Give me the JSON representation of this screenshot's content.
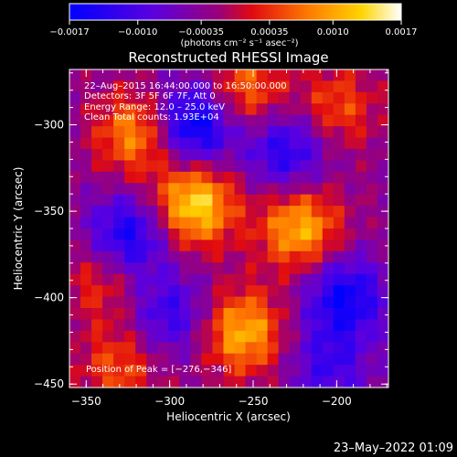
{
  "chart_data": {
    "type": "heatmap",
    "title": "Reconstructed RHESSI Image",
    "xlabel": "Heliocentric X (arcsec)",
    "ylabel": "Heliocentric Y (arcsec)",
    "xlim": [
      -360,
      -169
    ],
    "ylim": [
      -452,
      -268
    ],
    "x_ticks": [
      -350,
      -300,
      -250,
      -200
    ],
    "y_ticks": [
      -300,
      -350,
      -400,
      -450
    ],
    "x_tick_labels": [
      "−350",
      "−300",
      "−250",
      "−200"
    ],
    "y_tick_labels": [
      "−300",
      "−350",
      "−400",
      "−450"
    ],
    "colorbar": {
      "range": [
        -0.0017,
        0.0017
      ],
      "ticks": [
        -0.0017,
        -0.001,
        -0.00035,
        0.00035,
        0.001,
        0.0017
      ],
      "tick_labels": [
        "−0.0017",
        "−0.0010",
        "−0.00035",
        "0.00035",
        "0.0010",
        "0.0017"
      ],
      "unit_label": "(photons cm⁻² s⁻¹ asec⁻²)",
      "colors": [
        "#0000ff",
        "#7a00d0",
        "#ff1500",
        "#ff8a00",
        "#ffd200",
        "#ffffff"
      ]
    },
    "annotations": [
      "22–Aug–2015 16:44:00.000 to 16:50:00.000",
      "Detectors: 3F 5F 6F 7F, Att 0",
      "Energy Range: 12.0 – 25.0 keV",
      "Clean    Total counts: 1.93E+04"
    ],
    "peak_label": "Position of Peak = [−276,−346]",
    "peak_position": [
      -276,
      -346
    ],
    "sources": [
      {
        "x": -285,
        "y": -346,
        "value": 0.0017
      },
      {
        "x": -222,
        "y": -360,
        "value": 0.0014
      },
      {
        "x": -256,
        "y": -420,
        "value": 0.0014
      },
      {
        "x": -320,
        "y": -305,
        "value": 0.0012
      },
      {
        "x": -255,
        "y": -280,
        "value": 0.001
      },
      {
        "x": -200,
        "y": -290,
        "value": 0.0008
      },
      {
        "x": -330,
        "y": -440,
        "value": 0.0008
      },
      {
        "x": -340,
        "y": -390,
        "value": 0.0007
      }
    ],
    "negative_regions": [
      {
        "x": -285,
        "y": -300,
        "value": -0.0016
      },
      {
        "x": -325,
        "y": -365,
        "value": -0.0013
      },
      {
        "x": -195,
        "y": -400,
        "value": -0.0013
      },
      {
        "x": -230,
        "y": -315,
        "value": -0.0011
      },
      {
        "x": -300,
        "y": -410,
        "value": -0.0009
      },
      {
        "x": -205,
        "y": -440,
        "value": -0.0008
      }
    ]
  },
  "footer_date": "23–May–2022 01:09"
}
